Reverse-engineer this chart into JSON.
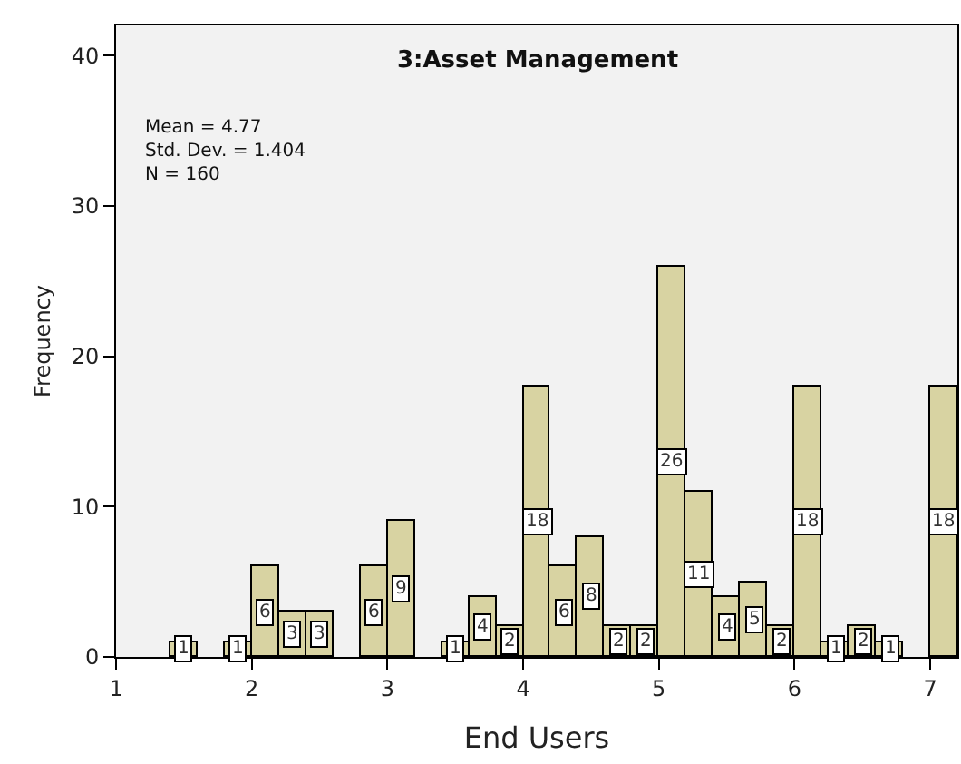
{
  "chart_data": {
    "type": "histogram",
    "title": "3:Asset Management",
    "xlabel": "End Users",
    "ylabel": "Frequency",
    "bins": [
      1.0,
      1.2,
      1.4,
      1.6,
      1.8,
      2.0,
      2.2,
      2.4,
      2.6,
      2.8,
      3.0,
      3.2,
      3.4,
      3.6,
      3.8,
      4.0,
      4.2,
      4.4,
      4.6,
      4.8,
      5.0,
      5.2,
      5.4,
      5.6,
      5.8,
      6.0,
      6.2,
      6.4,
      6.6,
      6.8,
      7.0,
      7.2
    ],
    "values": [
      0,
      0,
      1,
      0,
      1,
      6,
      3,
      3,
      0,
      6,
      9,
      0,
      1,
      4,
      2,
      18,
      6,
      8,
      2,
      2,
      26,
      11,
      4,
      5,
      2,
      18,
      1,
      2,
      1,
      0,
      18
    ],
    "value_labels": [
      null,
      null,
      "1",
      null,
      "1",
      "6",
      "3",
      "3",
      null,
      "6",
      "9",
      null,
      "1",
      "4",
      "2",
      "18",
      "6",
      "8",
      "2",
      "2",
      "26",
      "11",
      "4",
      "5",
      "2",
      "18",
      "1",
      "2",
      "1",
      null,
      "18"
    ],
    "color": "#d8d3a2",
    "xlim": [
      1,
      7.2
    ],
    "xticks": [
      1,
      2,
      3,
      4,
      5,
      6,
      7
    ],
    "ylim": [
      0,
      42
    ],
    "yticks": [
      0,
      10,
      20,
      30,
      40
    ],
    "grid": false,
    "annotations": [
      "Mean = 4.77\nStd. Dev. = 1.404\nN = 160"
    ]
  }
}
